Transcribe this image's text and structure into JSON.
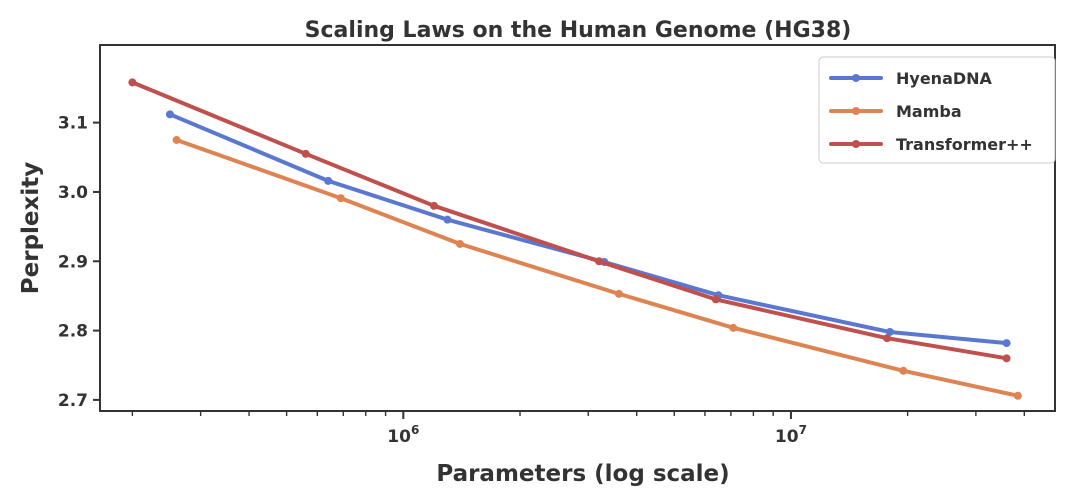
{
  "chart_data": {
    "type": "line",
    "title": "Scaling Laws on the Human Genome (HG38)",
    "xlabel": "Parameters (log scale)",
    "ylabel": "Perplexity",
    "xscale": "log",
    "xlim": [
      165000,
      48000000
    ],
    "ylim": [
      2.684,
      3.212
    ],
    "yticks": [
      2.7,
      2.8,
      2.9,
      3.0,
      3.1
    ],
    "ytick_labels": [
      "2.7",
      "2.8",
      "2.9",
      "3.0",
      "3.1"
    ],
    "xticks_major": [
      1000000,
      10000000
    ],
    "xtick_base": "10",
    "xtick_exponents": [
      "6",
      "7"
    ],
    "legend_position": "top-right",
    "grid": false,
    "series": [
      {
        "name": "HyenaDNA",
        "color": "#5b78d0",
        "x": [
          250000,
          640000,
          1300000,
          3300000,
          6500000,
          18000000,
          36000000
        ],
        "y": [
          3.112,
          3.016,
          2.96,
          2.899,
          2.851,
          2.798,
          2.782
        ]
      },
      {
        "name": "Mamba",
        "color": "#dd8452",
        "x": [
          260000,
          690000,
          1400000,
          3600000,
          7100000,
          19500000,
          38500000
        ],
        "y": [
          3.075,
          2.991,
          2.925,
          2.853,
          2.804,
          2.742,
          2.706
        ]
      },
      {
        "name": "Transformer++",
        "color": "#c0504d",
        "x": [
          200000,
          560000,
          1200000,
          3200000,
          6400000,
          17700000,
          36000000
        ],
        "y": [
          3.158,
          3.055,
          2.98,
          2.9,
          2.845,
          2.789,
          2.76
        ]
      }
    ]
  }
}
